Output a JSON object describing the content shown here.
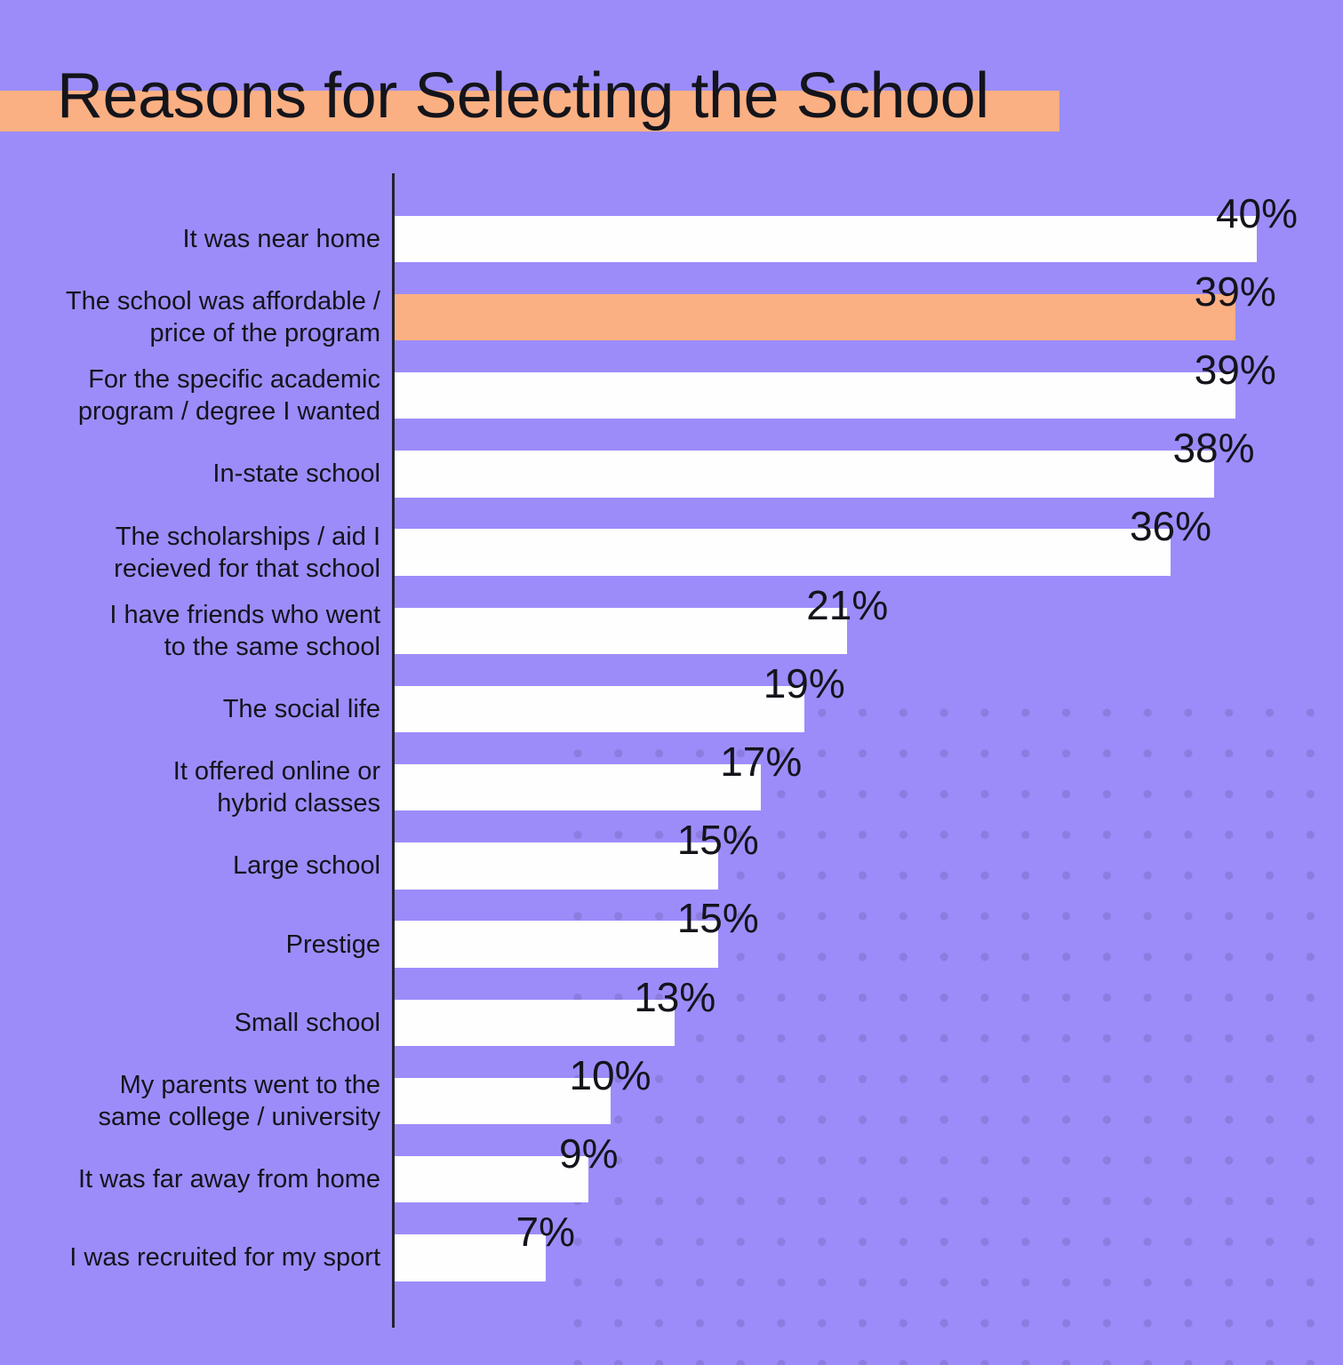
{
  "title": "Reasons for Selecting the School",
  "colors": {
    "background": "#9C8CFA",
    "accent_orange": "#FBB083",
    "bar_white": "#FEFEFE",
    "dot": "#8C7CE0",
    "text": "#14141B",
    "axis": "#23232B"
  },
  "chart_data": {
    "type": "bar",
    "orientation": "horizontal",
    "title": "Reasons for Selecting the School",
    "value_suffix": "%",
    "categories": [
      "It was near home",
      "The school was affordable /\nprice of the program",
      "For the specific academic\nprogram / degree I wanted",
      "In-state school",
      "The scholarships / aid I\nrecieved for that school",
      "I have friends who went\nto the same school",
      "The social life",
      "It offered online or\nhybrid classes",
      "Large school",
      "Prestige",
      "Small school",
      "My parents went to the\nsame college / university",
      "It was far away from home",
      "I was recruited for my sport"
    ],
    "values": [
      40,
      39,
      39,
      38,
      36,
      21,
      19,
      17,
      15,
      15,
      13,
      10,
      9,
      7
    ],
    "value_labels": [
      "40%",
      "39%",
      "39%",
      "38%",
      "36%",
      "21%",
      "19%",
      "17%",
      "15%",
      "15%",
      "13%",
      "10%",
      "9%",
      "7%"
    ],
    "highlighted_index": 1,
    "xlim": [
      0,
      42
    ],
    "grid": false,
    "legend": false,
    "axis_style": "single vertical baseline on left, no ticks",
    "background_pattern": "dot grid, bottom-right region"
  }
}
